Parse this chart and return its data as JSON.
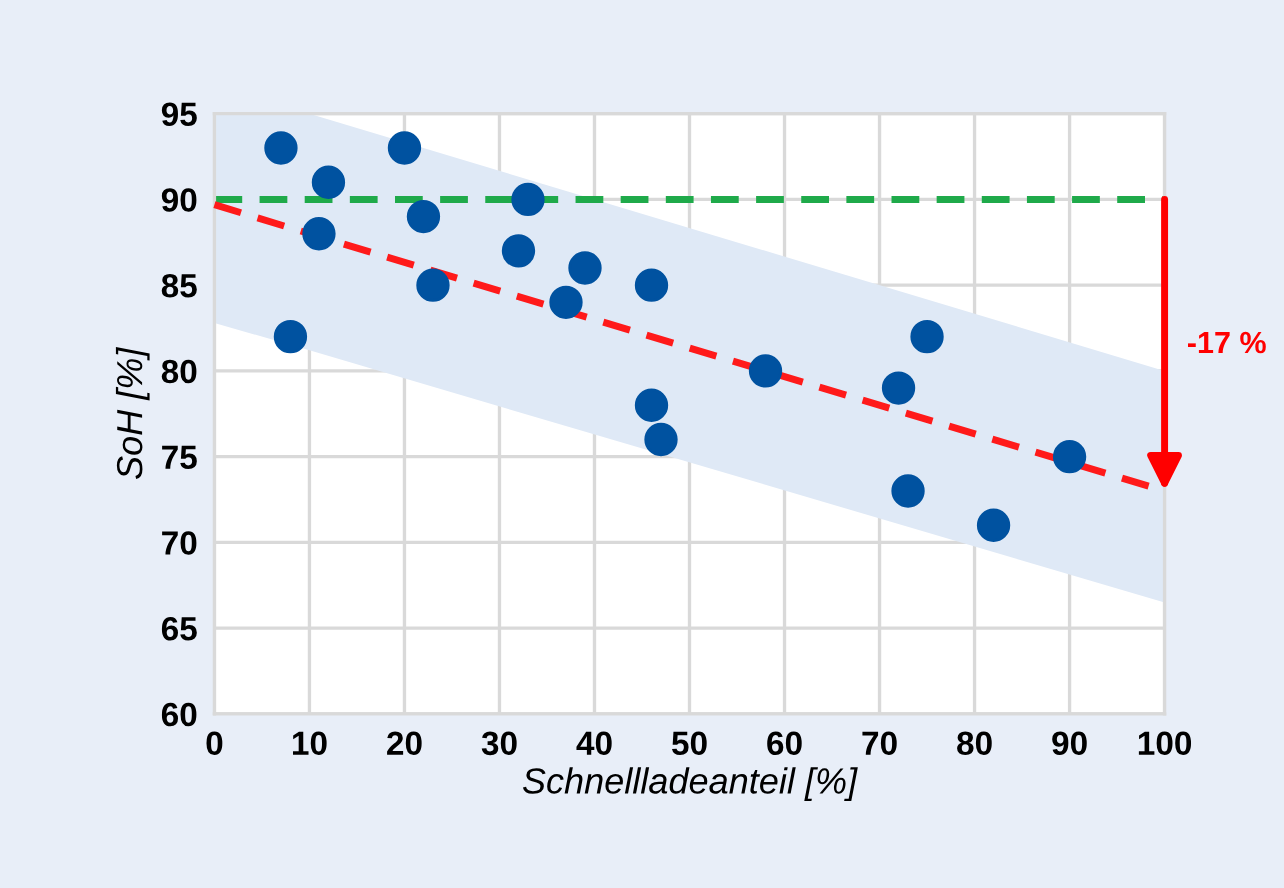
{
  "chart_data": {
    "type": "scatter",
    "xlabel": "Schnellladeanteil [%]",
    "ylabel": "SoH [%]",
    "series": [
      {
        "marker": "circle",
        "color": "#0052a0",
        "x": [
          7,
          8,
          11,
          12,
          20,
          22,
          23,
          32,
          33,
          37,
          39,
          46,
          46,
          47,
          58,
          72,
          73,
          75,
          82,
          90
        ],
        "values": [
          93,
          82,
          88,
          91,
          93,
          89,
          85,
          87,
          90,
          84,
          86,
          85,
          78,
          76,
          80,
          79,
          73,
          82,
          71,
          75
        ]
      },
      {
        "type": "line",
        "color": "#ff1a1a",
        "line_style": "dashed",
        "x": [
          0,
          10,
          100
        ],
        "values": [
          89.7,
          88.0,
          73
        ],
        "lower": [
          82.8,
          81.2,
          66.5
        ],
        "upper": [
          95,
          95,
          80
        ]
      }
    ],
    "ref_lines": [
      {
        "axis": "y",
        "value": 90,
        "color": "#1faa4a",
        "line_style": "dashed"
      }
    ],
    "annotations": [
      "-17 %"
    ],
    "xlim": [
      0,
      100
    ],
    "ylim": [
      60,
      95
    ],
    "xticks": [
      0,
      10,
      20,
      30,
      40,
      50,
      60,
      70,
      80,
      90,
      100
    ],
    "yticks": [
      60,
      65,
      70,
      75,
      80,
      85,
      90,
      95
    ],
    "grid": true
  }
}
